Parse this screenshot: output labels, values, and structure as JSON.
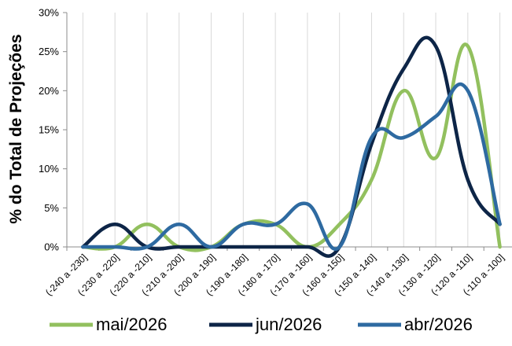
{
  "chart_data": {
    "type": "line",
    "smooth": true,
    "ylabel": "% do Total de Projeções",
    "xlabel": "",
    "ylim": [
      0,
      30
    ],
    "y_ticks": [
      "0%",
      "5%",
      "10%",
      "15%",
      "20%",
      "25%",
      "30%"
    ],
    "grid": "vertical",
    "legend_position": "bottom",
    "categories": [
      "(-240 a -230]",
      "(-230 a -220]",
      "(-220 a -210]",
      "(-210 a -200]",
      "(-200 a -190]",
      "(-190 a -180]",
      "(-180 a -170]",
      "(-170 a -160]",
      "(-160 a -150]",
      "(-150 a -140]",
      "(-140 a -130]",
      "(-130 a -120]",
      "(-120 a -110]",
      "(-110 a -100]"
    ],
    "series": [
      {
        "name": "mai/2026",
        "color": "#92c05e",
        "values": [
          0,
          0,
          2.9,
          0,
          0,
          2.9,
          2.9,
          0,
          2.9,
          8.6,
          20.0,
          11.4,
          25.7,
          0
        ]
      },
      {
        "name": "jun/2026",
        "color": "#0d2547",
        "values": [
          0,
          2.9,
          0,
          0,
          0,
          0,
          0,
          0,
          0,
          13.2,
          22.8,
          25.7,
          8.6,
          2.9
        ]
      },
      {
        "name": "abr/2026",
        "color": "#2e6aa1",
        "values": [
          0,
          0,
          0,
          2.9,
          0,
          2.9,
          2.9,
          5.5,
          0,
          14.0,
          14.0,
          16.7,
          20.0,
          2.9
        ]
      }
    ]
  }
}
